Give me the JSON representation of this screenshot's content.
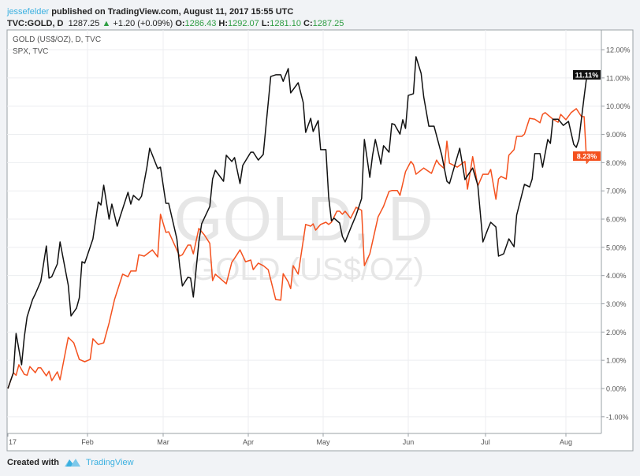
{
  "header": {
    "user": "jessefelder",
    "published": "published on TradingView.com, August 11, 2017 15:55 UTC",
    "symbol": "TVC:GOLD, D",
    "last": "1287.25",
    "change": "+1.20 (+0.09%)",
    "o_label": "O:",
    "o": "1286.43",
    "h_label": "H:",
    "h": "1292.07",
    "l_label": "L:",
    "l": "1281.10",
    "c_label": "C:",
    "c": "1287.25",
    "up_icon": "triangle-up-icon"
  },
  "legend": [
    "GOLD (US$/OZ), D, TVC",
    "SPX, TVC"
  ],
  "watermark": {
    "main": "GOLD, D",
    "sub": "GOLD (US$/OZ)"
  },
  "footer": {
    "created": "Created with",
    "brand": "TradingView",
    "logo_icon": "tradingview-logo-icon"
  },
  "colors": {
    "gold": "#111111",
    "spx": "#f4511e",
    "up": "#2f9e44",
    "user": "#3bb0e0"
  },
  "chart_data": {
    "type": "line",
    "title": "",
    "xlabel": "",
    "ylabel": "",
    "ylim": [
      -1.5,
      12.7
    ],
    "y_ticks": [
      "12.00%",
      "11.00%",
      "10.00%",
      "9.00%",
      "8.00%",
      "7.00%",
      "6.00%",
      "5.00%",
      "4.00%",
      "3.00%",
      "2.00%",
      "1.00%",
      "0.00%",
      "-1.00%"
    ],
    "y_tick_values": [
      12,
      11,
      10,
      9,
      8,
      7,
      6,
      5,
      4,
      3,
      2,
      1,
      0,
      -1
    ],
    "x_ticks": [
      "17",
      "Feb",
      "Mar",
      "Apr",
      "May",
      "Jun",
      "Jul",
      "Aug"
    ],
    "x_tick_dates": [
      "2017-01-03",
      "2017-02-01",
      "2017-03-01",
      "2017-04-01",
      "2017-05-01",
      "2017-06-01",
      "2017-07-01",
      "2017-08-01"
    ],
    "grid": true,
    "series": [
      {
        "name": "GOLD (US$/OZ), D, TVC",
        "color": "#111111",
        "last_label": "11.11%",
        "points": [
          [
            "2017-01-03",
            0.0
          ],
          [
            "2017-01-05",
            0.56
          ],
          [
            "2017-01-06",
            1.95
          ],
          [
            "2017-01-08",
            0.84
          ],
          [
            "2017-01-09",
            1.84
          ],
          [
            "2017-01-10",
            2.54
          ],
          [
            "2017-01-12",
            3.15
          ],
          [
            "2017-01-13",
            3.35
          ],
          [
            "2017-01-15",
            3.8
          ],
          [
            "2017-01-17",
            5.05
          ],
          [
            "2017-01-18",
            3.91
          ],
          [
            "2017-01-19",
            3.96
          ],
          [
            "2017-01-21",
            4.41
          ],
          [
            "2017-01-22",
            5.19
          ],
          [
            "2017-01-25",
            3.66
          ],
          [
            "2017-01-26",
            2.57
          ],
          [
            "2017-01-28",
            2.85
          ],
          [
            "2017-01-29",
            3.21
          ],
          [
            "2017-01-30",
            4.49
          ],
          [
            "2017-01-31",
            4.44
          ],
          [
            "2017-02-03",
            5.3
          ],
          [
            "2017-02-05",
            6.61
          ],
          [
            "2017-02-06",
            6.5
          ],
          [
            "2017-02-07",
            7.2
          ],
          [
            "2017-02-09",
            6.0
          ],
          [
            "2017-02-10",
            6.53
          ],
          [
            "2017-02-12",
            5.75
          ],
          [
            "2017-02-13",
            6.06
          ],
          [
            "2017-02-16",
            6.95
          ],
          [
            "2017-02-17",
            6.53
          ],
          [
            "2017-02-18",
            6.84
          ],
          [
            "2017-02-20",
            6.67
          ],
          [
            "2017-02-21",
            6.81
          ],
          [
            "2017-02-23",
            7.84
          ],
          [
            "2017-02-24",
            8.51
          ],
          [
            "2017-02-27",
            7.79
          ],
          [
            "2017-02-28",
            7.84
          ],
          [
            "2017-03-02",
            6.56
          ],
          [
            "2017-03-03",
            6.56
          ],
          [
            "2017-03-06",
            5.3
          ],
          [
            "2017-03-07",
            4.35
          ],
          [
            "2017-03-08",
            3.63
          ],
          [
            "2017-03-10",
            3.94
          ],
          [
            "2017-03-11",
            3.91
          ],
          [
            "2017-03-12",
            3.24
          ],
          [
            "2017-03-14",
            5.19
          ],
          [
            "2017-03-15",
            5.83
          ],
          [
            "2017-03-18",
            6.45
          ],
          [
            "2017-03-19",
            7.42
          ],
          [
            "2017-03-20",
            7.73
          ],
          [
            "2017-03-23",
            7.34
          ],
          [
            "2017-03-24",
            8.26
          ],
          [
            "2017-03-26",
            8.04
          ],
          [
            "2017-03-27",
            8.18
          ],
          [
            "2017-03-29",
            7.26
          ],
          [
            "2017-03-30",
            7.9
          ],
          [
            "2017-04-02",
            8.37
          ],
          [
            "2017-04-03",
            8.37
          ],
          [
            "2017-04-05",
            8.09
          ],
          [
            "2017-04-07",
            8.29
          ],
          [
            "2017-04-10",
            11.05
          ],
          [
            "2017-04-12",
            11.11
          ],
          [
            "2017-04-14",
            11.11
          ],
          [
            "2017-04-15",
            10.88
          ],
          [
            "2017-04-17",
            11.33
          ],
          [
            "2017-04-18",
            10.47
          ],
          [
            "2017-04-21",
            10.83
          ],
          [
            "2017-04-23",
            10.13
          ],
          [
            "2017-04-24",
            9.07
          ],
          [
            "2017-04-26",
            9.57
          ],
          [
            "2017-04-27",
            9.1
          ],
          [
            "2017-04-29",
            9.49
          ],
          [
            "2017-04-30",
            8.46
          ],
          [
            "2017-05-02",
            8.46
          ],
          [
            "2017-05-03",
            6.78
          ],
          [
            "2017-05-04",
            5.94
          ],
          [
            "2017-05-05",
            6.03
          ],
          [
            "2017-05-07",
            5.86
          ],
          [
            "2017-05-08",
            5.39
          ],
          [
            "2017-05-09",
            5.19
          ],
          [
            "2017-05-11",
            5.67
          ],
          [
            "2017-05-13",
            6.14
          ],
          [
            "2017-05-15",
            6.73
          ],
          [
            "2017-05-16",
            8.82
          ],
          [
            "2017-05-18",
            7.48
          ],
          [
            "2017-05-19",
            8.26
          ],
          [
            "2017-05-20",
            8.82
          ],
          [
            "2017-05-22",
            7.95
          ],
          [
            "2017-05-23",
            8.6
          ],
          [
            "2017-05-25",
            8.37
          ],
          [
            "2017-05-26",
            9.38
          ],
          [
            "2017-05-27",
            9.35
          ],
          [
            "2017-05-29",
            9.01
          ],
          [
            "2017-05-30",
            9.52
          ],
          [
            "2017-05-31",
            9.21
          ],
          [
            "2017-06-01",
            10.38
          ],
          [
            "2017-06-03",
            10.44
          ],
          [
            "2017-06-04",
            11.75
          ],
          [
            "2017-06-06",
            11.16
          ],
          [
            "2017-06-07",
            10.33
          ],
          [
            "2017-06-09",
            9.29
          ],
          [
            "2017-06-11",
            9.29
          ],
          [
            "2017-06-14",
            8.26
          ],
          [
            "2017-06-16",
            7.34
          ],
          [
            "2017-06-17",
            7.26
          ],
          [
            "2017-06-21",
            8.51
          ],
          [
            "2017-06-23",
            7.4
          ],
          [
            "2017-06-26",
            7.81
          ],
          [
            "2017-06-28",
            7.2
          ],
          [
            "2017-06-30",
            5.19
          ],
          [
            "2017-07-02",
            5.67
          ],
          [
            "2017-07-03",
            5.89
          ],
          [
            "2017-07-05",
            5.72
          ],
          [
            "2017-07-06",
            4.69
          ],
          [
            "2017-07-08",
            4.77
          ],
          [
            "2017-07-10",
            5.3
          ],
          [
            "2017-07-12",
            5.02
          ],
          [
            "2017-07-13",
            6.14
          ],
          [
            "2017-07-16",
            7.23
          ],
          [
            "2017-07-18",
            7.14
          ],
          [
            "2017-07-19",
            7.42
          ],
          [
            "2017-07-20",
            8.32
          ],
          [
            "2017-07-22",
            8.32
          ],
          [
            "2017-07-23",
            7.84
          ],
          [
            "2017-07-25",
            8.82
          ],
          [
            "2017-07-26",
            8.68
          ],
          [
            "2017-07-27",
            9.54
          ],
          [
            "2017-07-29",
            9.54
          ],
          [
            "2017-07-31",
            9.32
          ],
          [
            "2017-08-02",
            9.46
          ],
          [
            "2017-08-04",
            8.65
          ],
          [
            "2017-08-05",
            8.54
          ],
          [
            "2017-08-06",
            8.82
          ],
          [
            "2017-08-08",
            10.33
          ],
          [
            "2017-08-09",
            11.05
          ],
          [
            "2017-08-11",
            11.11
          ]
        ]
      },
      {
        "name": "SPX, TVC",
        "color": "#f4511e",
        "last_label": "8.23%",
        "points": [
          [
            "2017-01-03",
            0.0
          ],
          [
            "2017-01-05",
            0.56
          ],
          [
            "2017-01-06",
            0.47
          ],
          [
            "2017-01-07",
            0.84
          ],
          [
            "2017-01-09",
            0.5
          ],
          [
            "2017-01-10",
            0.47
          ],
          [
            "2017-01-11",
            0.78
          ],
          [
            "2017-01-13",
            0.56
          ],
          [
            "2017-01-14",
            0.73
          ],
          [
            "2017-01-15",
            0.73
          ],
          [
            "2017-01-17",
            0.45
          ],
          [
            "2017-01-18",
            0.61
          ],
          [
            "2017-01-19",
            0.28
          ],
          [
            "2017-01-21",
            0.59
          ],
          [
            "2017-01-22",
            0.31
          ],
          [
            "2017-01-25",
            1.81
          ],
          [
            "2017-01-27",
            1.62
          ],
          [
            "2017-01-29",
            1.03
          ],
          [
            "2017-01-31",
            0.95
          ],
          [
            "2017-02-02",
            1.03
          ],
          [
            "2017-02-03",
            1.76
          ],
          [
            "2017-02-05",
            1.56
          ],
          [
            "2017-02-07",
            1.62
          ],
          [
            "2017-02-09",
            2.32
          ],
          [
            "2017-02-11",
            3.15
          ],
          [
            "2017-02-14",
            4.05
          ],
          [
            "2017-02-16",
            3.96
          ],
          [
            "2017-02-17",
            4.16
          ],
          [
            "2017-02-19",
            4.16
          ],
          [
            "2017-02-20",
            4.74
          ],
          [
            "2017-02-22",
            4.69
          ],
          [
            "2017-02-25",
            4.91
          ],
          [
            "2017-02-27",
            4.66
          ],
          [
            "2017-02-28",
            6.17
          ],
          [
            "2017-03-02",
            5.53
          ],
          [
            "2017-03-03",
            5.55
          ],
          [
            "2017-03-07",
            4.69
          ],
          [
            "2017-03-08",
            4.74
          ],
          [
            "2017-03-10",
            5.08
          ],
          [
            "2017-03-11",
            5.08
          ],
          [
            "2017-03-12",
            4.77
          ],
          [
            "2017-03-14",
            5.67
          ],
          [
            "2017-03-16",
            5.44
          ],
          [
            "2017-03-18",
            5.14
          ],
          [
            "2017-03-19",
            3.82
          ],
          [
            "2017-03-20",
            4.05
          ],
          [
            "2017-03-24",
            3.71
          ],
          [
            "2017-03-26",
            4.47
          ],
          [
            "2017-03-27",
            4.61
          ],
          [
            "2017-03-29",
            4.91
          ],
          [
            "2017-03-31",
            4.49
          ],
          [
            "2017-04-02",
            4.55
          ],
          [
            "2017-04-03",
            4.21
          ],
          [
            "2017-04-05",
            4.44
          ],
          [
            "2017-04-07",
            4.35
          ],
          [
            "2017-04-09",
            4.21
          ],
          [
            "2017-04-12",
            3.15
          ],
          [
            "2017-04-14",
            3.13
          ],
          [
            "2017-04-15",
            4.07
          ],
          [
            "2017-04-17",
            3.77
          ],
          [
            "2017-04-18",
            3.54
          ],
          [
            "2017-04-19",
            4.35
          ],
          [
            "2017-04-21",
            4.05
          ],
          [
            "2017-04-24",
            5.81
          ],
          [
            "2017-04-26",
            5.75
          ],
          [
            "2017-04-27",
            5.83
          ],
          [
            "2017-04-28",
            5.61
          ],
          [
            "2017-04-30",
            5.81
          ],
          [
            "2017-05-02",
            5.89
          ],
          [
            "2017-05-03",
            5.81
          ],
          [
            "2017-05-04",
            5.89
          ],
          [
            "2017-05-06",
            6.28
          ],
          [
            "2017-05-07",
            6.28
          ],
          [
            "2017-05-08",
            6.17
          ],
          [
            "2017-05-09",
            6.28
          ],
          [
            "2017-05-11",
            6.03
          ],
          [
            "2017-05-13",
            6.42
          ],
          [
            "2017-05-15",
            6.31
          ],
          [
            "2017-05-16",
            4.35
          ],
          [
            "2017-05-18",
            4.77
          ],
          [
            "2017-05-21",
            6.08
          ],
          [
            "2017-05-23",
            6.45
          ],
          [
            "2017-05-25",
            6.98
          ],
          [
            "2017-05-26",
            7.01
          ],
          [
            "2017-05-28",
            7.01
          ],
          [
            "2017-05-29",
            6.84
          ],
          [
            "2017-05-31",
            7.68
          ],
          [
            "2017-06-02",
            8.04
          ],
          [
            "2017-06-03",
            7.93
          ],
          [
            "2017-06-04",
            7.59
          ],
          [
            "2017-06-07",
            7.81
          ],
          [
            "2017-06-10",
            7.62
          ],
          [
            "2017-06-12",
            8.09
          ],
          [
            "2017-06-13",
            7.95
          ],
          [
            "2017-06-15",
            7.79
          ],
          [
            "2017-06-16",
            8.76
          ],
          [
            "2017-06-17",
            7.98
          ],
          [
            "2017-06-20",
            7.84
          ],
          [
            "2017-06-23",
            8.04
          ],
          [
            "2017-06-24",
            7.06
          ],
          [
            "2017-06-26",
            8.21
          ],
          [
            "2017-06-28",
            7.17
          ],
          [
            "2017-06-30",
            7.59
          ],
          [
            "2017-07-02",
            7.59
          ],
          [
            "2017-07-03",
            7.76
          ],
          [
            "2017-07-05",
            6.7
          ],
          [
            "2017-07-06",
            7.42
          ],
          [
            "2017-07-07",
            7.51
          ],
          [
            "2017-07-09",
            7.42
          ],
          [
            "2017-07-10",
            8.26
          ],
          [
            "2017-07-12",
            8.46
          ],
          [
            "2017-07-13",
            8.93
          ],
          [
            "2017-07-15",
            8.93
          ],
          [
            "2017-07-16",
            9.01
          ],
          [
            "2017-07-18",
            9.57
          ],
          [
            "2017-07-20",
            9.54
          ],
          [
            "2017-07-22",
            9.41
          ],
          [
            "2017-07-23",
            9.71
          ],
          [
            "2017-07-24",
            9.77
          ],
          [
            "2017-07-27",
            9.54
          ],
          [
            "2017-07-29",
            9.43
          ],
          [
            "2017-07-30",
            9.71
          ],
          [
            "2017-08-01",
            9.52
          ],
          [
            "2017-08-03",
            9.77
          ],
          [
            "2017-08-05",
            9.91
          ],
          [
            "2017-08-07",
            9.63
          ],
          [
            "2017-08-08",
            9.63
          ],
          [
            "2017-08-09",
            7.98
          ],
          [
            "2017-08-11",
            8.23
          ]
        ]
      }
    ]
  }
}
